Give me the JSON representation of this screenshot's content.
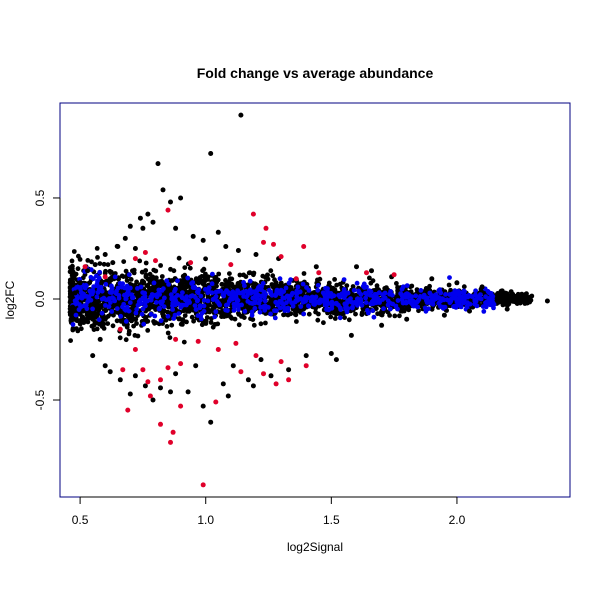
{
  "chart_data": {
    "type": "scatter",
    "title": "Fold change vs average abundance",
    "xlabel": "log2Signal",
    "ylabel": "log2FC",
    "xlim": [
      0.42,
      2.45
    ],
    "ylim": [
      -0.98,
      0.97
    ],
    "xticks": [
      "0.5",
      "1.0",
      "1.5",
      "2.0"
    ],
    "yticks": [
      "-0.5",
      "0.0",
      "0.5"
    ],
    "xtick_values": [
      0.5,
      1.0,
      1.5,
      2.0
    ],
    "ytick_values": [
      -0.5,
      0.0,
      0.5
    ],
    "frame_color": "#000080",
    "series": [
      {
        "color": "#000000",
        "points": [
          [
            1.14,
            0.91
          ],
          [
            1.02,
            0.72
          ],
          [
            0.81,
            0.67
          ],
          [
            0.83,
            0.54
          ],
          [
            0.9,
            0.5
          ],
          [
            0.86,
            0.48
          ],
          [
            0.77,
            0.42
          ],
          [
            0.74,
            0.4
          ],
          [
            0.79,
            0.38
          ],
          [
            0.7,
            0.36
          ],
          [
            0.75,
            0.35
          ],
          [
            0.88,
            0.35
          ],
          [
            0.95,
            0.31
          ],
          [
            1.05,
            0.33
          ],
          [
            0.68,
            0.3
          ],
          [
            0.99,
            0.29
          ],
          [
            1.08,
            0.26
          ],
          [
            0.65,
            0.26
          ],
          [
            0.72,
            0.25
          ],
          [
            1.13,
            0.24
          ],
          [
            1.2,
            0.22
          ],
          [
            1.29,
            0.2
          ],
          [
            0.6,
            0.22
          ],
          [
            1.6,
            0.16
          ],
          [
            1.66,
            0.14
          ],
          [
            1.44,
            0.16
          ],
          [
            1.74,
            0.11
          ],
          [
            1.9,
            0.1
          ],
          [
            2.0,
            0.08
          ],
          [
            2.1,
            0.06
          ],
          [
            2.18,
            0.04
          ],
          [
            2.25,
            0.02
          ],
          [
            2.36,
            -0.01
          ],
          [
            2.28,
            -0.02
          ],
          [
            2.2,
            -0.05
          ],
          [
            2.05,
            -0.06
          ],
          [
            1.95,
            -0.08
          ],
          [
            1.8,
            -0.1
          ],
          [
            1.7,
            -0.13
          ],
          [
            1.58,
            -0.18
          ],
          [
            1.5,
            -0.27
          ],
          [
            1.52,
            -0.3
          ],
          [
            1.4,
            -0.28
          ],
          [
            1.33,
            -0.35
          ],
          [
            1.26,
            -0.38
          ],
          [
            1.17,
            -0.4
          ],
          [
            1.19,
            -0.43
          ],
          [
            1.07,
            -0.42
          ],
          [
            1.09,
            -0.48
          ],
          [
            0.99,
            -0.53
          ],
          [
            1.02,
            -0.61
          ],
          [
            0.93,
            -0.46
          ],
          [
            0.82,
            -0.44
          ],
          [
            0.86,
            -0.46
          ],
          [
            0.76,
            -0.43
          ],
          [
            0.79,
            -0.5
          ],
          [
            0.7,
            -0.47
          ],
          [
            0.66,
            -0.4
          ],
          [
            0.6,
            -0.33
          ],
          [
            0.55,
            -0.28
          ],
          [
            0.62,
            -0.36
          ],
          [
            0.72,
            -0.38
          ],
          [
            0.88,
            -0.37
          ],
          [
            0.96,
            -0.33
          ],
          [
            1.11,
            -0.33
          ],
          [
            1.22,
            -0.3
          ],
          [
            0.53,
            0.14
          ],
          [
            0.56,
            0.17
          ],
          [
            0.63,
            0.18
          ],
          [
            0.58,
            -0.2
          ],
          [
            0.48,
            0.03
          ],
          [
            0.47,
            -0.04
          ],
          [
            0.5,
            0.08
          ],
          [
            0.51,
            -0.09
          ]
        ]
      },
      {
        "color": "#e0002a",
        "points": [
          [
            0.85,
            0.44
          ],
          [
            1.19,
            0.42
          ],
          [
            1.24,
            0.35
          ],
          [
            1.23,
            0.28
          ],
          [
            1.27,
            0.27
          ],
          [
            1.39,
            0.26
          ],
          [
            1.3,
            0.21
          ],
          [
            0.76,
            0.23
          ],
          [
            0.72,
            0.2
          ],
          [
            0.8,
            0.19
          ],
          [
            0.94,
            0.18
          ],
          [
            1.1,
            0.17
          ],
          [
            1.64,
            0.13
          ],
          [
            1.45,
            0.13
          ],
          [
            1.75,
            0.12
          ],
          [
            1.36,
            0.1
          ],
          [
            0.6,
            0.11
          ],
          [
            0.52,
            0.16
          ],
          [
            0.66,
            -0.15
          ],
          [
            0.72,
            -0.25
          ],
          [
            0.88,
            -0.2
          ],
          [
            0.97,
            -0.21
          ],
          [
            1.05,
            -0.25
          ],
          [
            1.12,
            -0.22
          ],
          [
            1.2,
            -0.28
          ],
          [
            1.3,
            -0.31
          ],
          [
            1.4,
            -0.33
          ],
          [
            1.28,
            -0.42
          ],
          [
            1.33,
            -0.4
          ],
          [
            1.23,
            -0.37
          ],
          [
            1.14,
            -0.36
          ],
          [
            0.9,
            -0.32
          ],
          [
            0.85,
            -0.34
          ],
          [
            0.82,
            -0.4
          ],
          [
            0.77,
            -0.41
          ],
          [
            0.75,
            -0.35
          ],
          [
            0.78,
            -0.48
          ],
          [
            0.67,
            -0.35
          ],
          [
            0.69,
            -0.55
          ],
          [
            0.9,
            -0.53
          ],
          [
            1.04,
            -0.51
          ],
          [
            0.82,
            -0.62
          ],
          [
            0.87,
            -0.66
          ],
          [
            0.86,
            -0.71
          ],
          [
            0.99,
            -0.92
          ]
        ]
      }
    ]
  }
}
